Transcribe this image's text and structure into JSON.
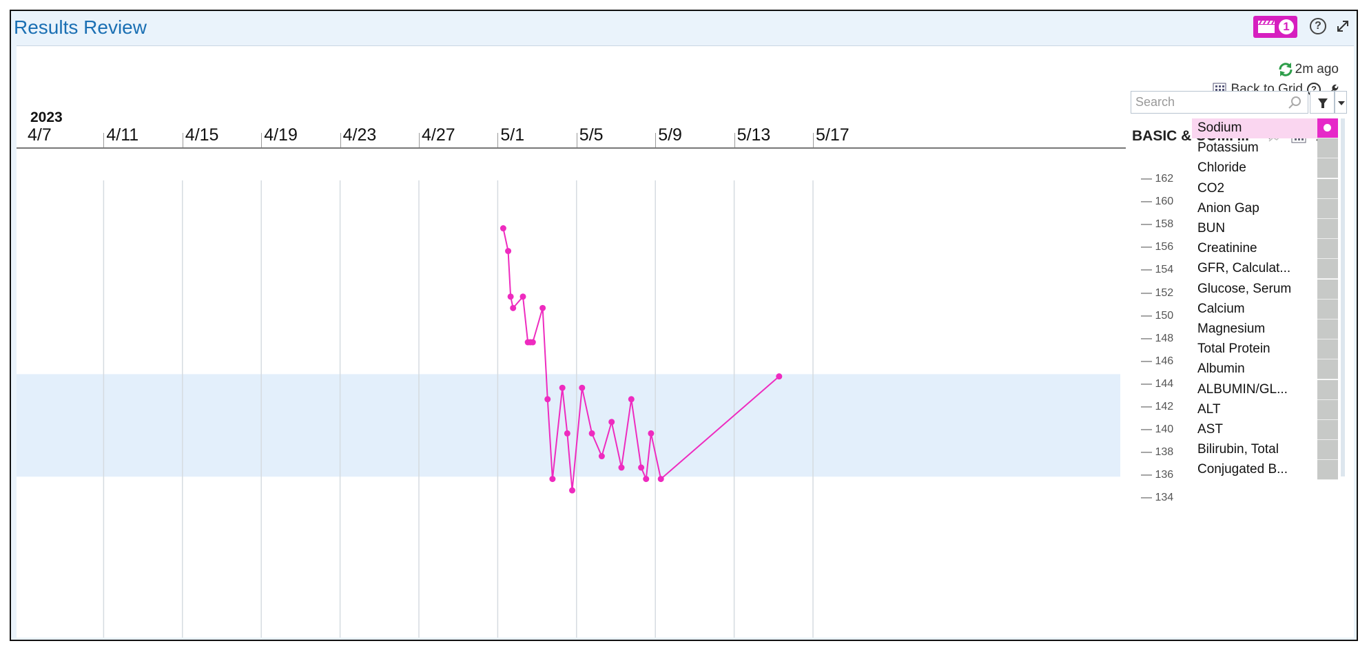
{
  "window": {
    "title": "Results Review",
    "notification_count": "1",
    "help_icon": "?"
  },
  "toolbar": {
    "refresh_text": "2m ago",
    "back_to_grid": "Back to ",
    "back_to_grid_key": "G",
    "back_to_grid_rest": "rid",
    "search_placeholder": "Search"
  },
  "timeline": {
    "year": "2023",
    "dates": [
      "4/7",
      "4/11",
      "4/15",
      "4/19",
      "4/23",
      "4/27",
      "5/1",
      "5/5",
      "5/9",
      "5/13",
      "5/17"
    ]
  },
  "group": {
    "title": "BASIC & COMP..."
  },
  "analytes": [
    {
      "name": "Sodium",
      "active": true
    },
    {
      "name": "Potassium"
    },
    {
      "name": "Chloride"
    },
    {
      "name": "CO2"
    },
    {
      "name": "Anion Gap"
    },
    {
      "name": "BUN"
    },
    {
      "name": "Creatinine"
    },
    {
      "name": "GFR, Calculat..."
    },
    {
      "name": "Glucose, Serum"
    },
    {
      "name": "Calcium"
    },
    {
      "name": "Magnesium"
    },
    {
      "name": "Total Protein"
    },
    {
      "name": "Albumin"
    },
    {
      "name": "ALBUMIN/GL..."
    },
    {
      "name": "ALT"
    },
    {
      "name": "AST"
    },
    {
      "name": "Bilirubin, Total"
    },
    {
      "name": "Conjugated B..."
    }
  ],
  "colors": {
    "series": "#ee2bbf",
    "normal_band": "#e3effb",
    "title": "#1a6fb3"
  },
  "chart_data": {
    "type": "line",
    "series": [
      {
        "x": [
          "2023-05-01 00:00",
          "2023-05-01 06:00",
          "2023-05-01 09:00",
          "2023-05-01 12:00",
          "2023-05-02 00:00",
          "2023-05-02 06:00",
          "2023-05-02 09:00",
          "2023-05-02 12:00",
          "2023-05-03 00:00",
          "2023-05-03 06:00",
          "2023-05-03 12:00",
          "2023-05-04 00:00",
          "2023-05-04 06:00",
          "2023-05-04 12:00",
          "2023-05-05 00:00",
          "2023-05-05 12:00",
          "2023-05-06 00:00",
          "2023-05-06 12:00",
          "2023-05-07 00:00",
          "2023-05-07 12:00",
          "2023-05-08 00:00",
          "2023-05-08 06:00",
          "2023-05-08 12:00",
          "2023-05-09 00:00",
          "2023-05-15 00:00"
        ],
        "values": [
          157.8,
          155.8,
          151.8,
          150.8,
          151.8,
          147.8,
          147.8,
          147.8,
          150.8,
          142.8,
          135.8,
          143.8,
          139.8,
          134.8,
          143.8,
          139.8,
          137.8,
          140.8,
          136.8,
          142.8,
          136.8,
          135.8,
          139.8,
          135.8,
          144.8
        ]
      }
    ],
    "x_range": [
      "2023-04-07",
      "2023-05-19"
    ],
    "y_ticks": [
      162,
      160,
      158,
      156,
      154,
      152,
      150,
      148,
      146,
      144,
      142,
      140,
      138,
      136,
      134
    ],
    "y_range": [
      133.5,
      162.5
    ],
    "normal_range": [
      136,
      145
    ],
    "grid": "vertical"
  }
}
